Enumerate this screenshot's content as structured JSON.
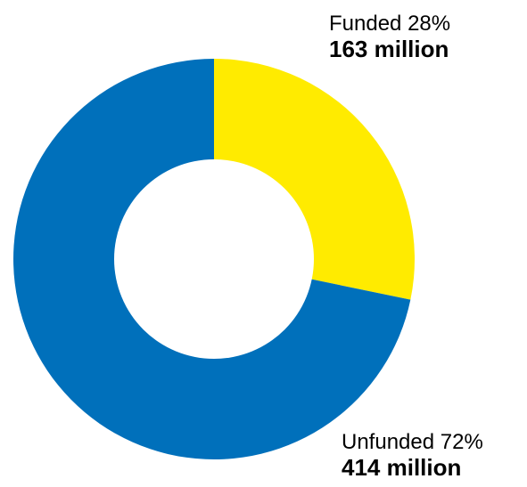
{
  "chart_data": {
    "type": "pie",
    "donut": true,
    "slices": [
      {
        "key": "funded",
        "percent_label": "Funded 28%",
        "value_label": "163 million",
        "value": 163,
        "percent": 28,
        "color": "#FFEB00"
      },
      {
        "key": "unfunded",
        "percent_label": "Unfunded 72%",
        "value_label": "414 million",
        "value": 414,
        "percent": 72,
        "color": "#0070BB"
      }
    ],
    "legend": "none"
  }
}
